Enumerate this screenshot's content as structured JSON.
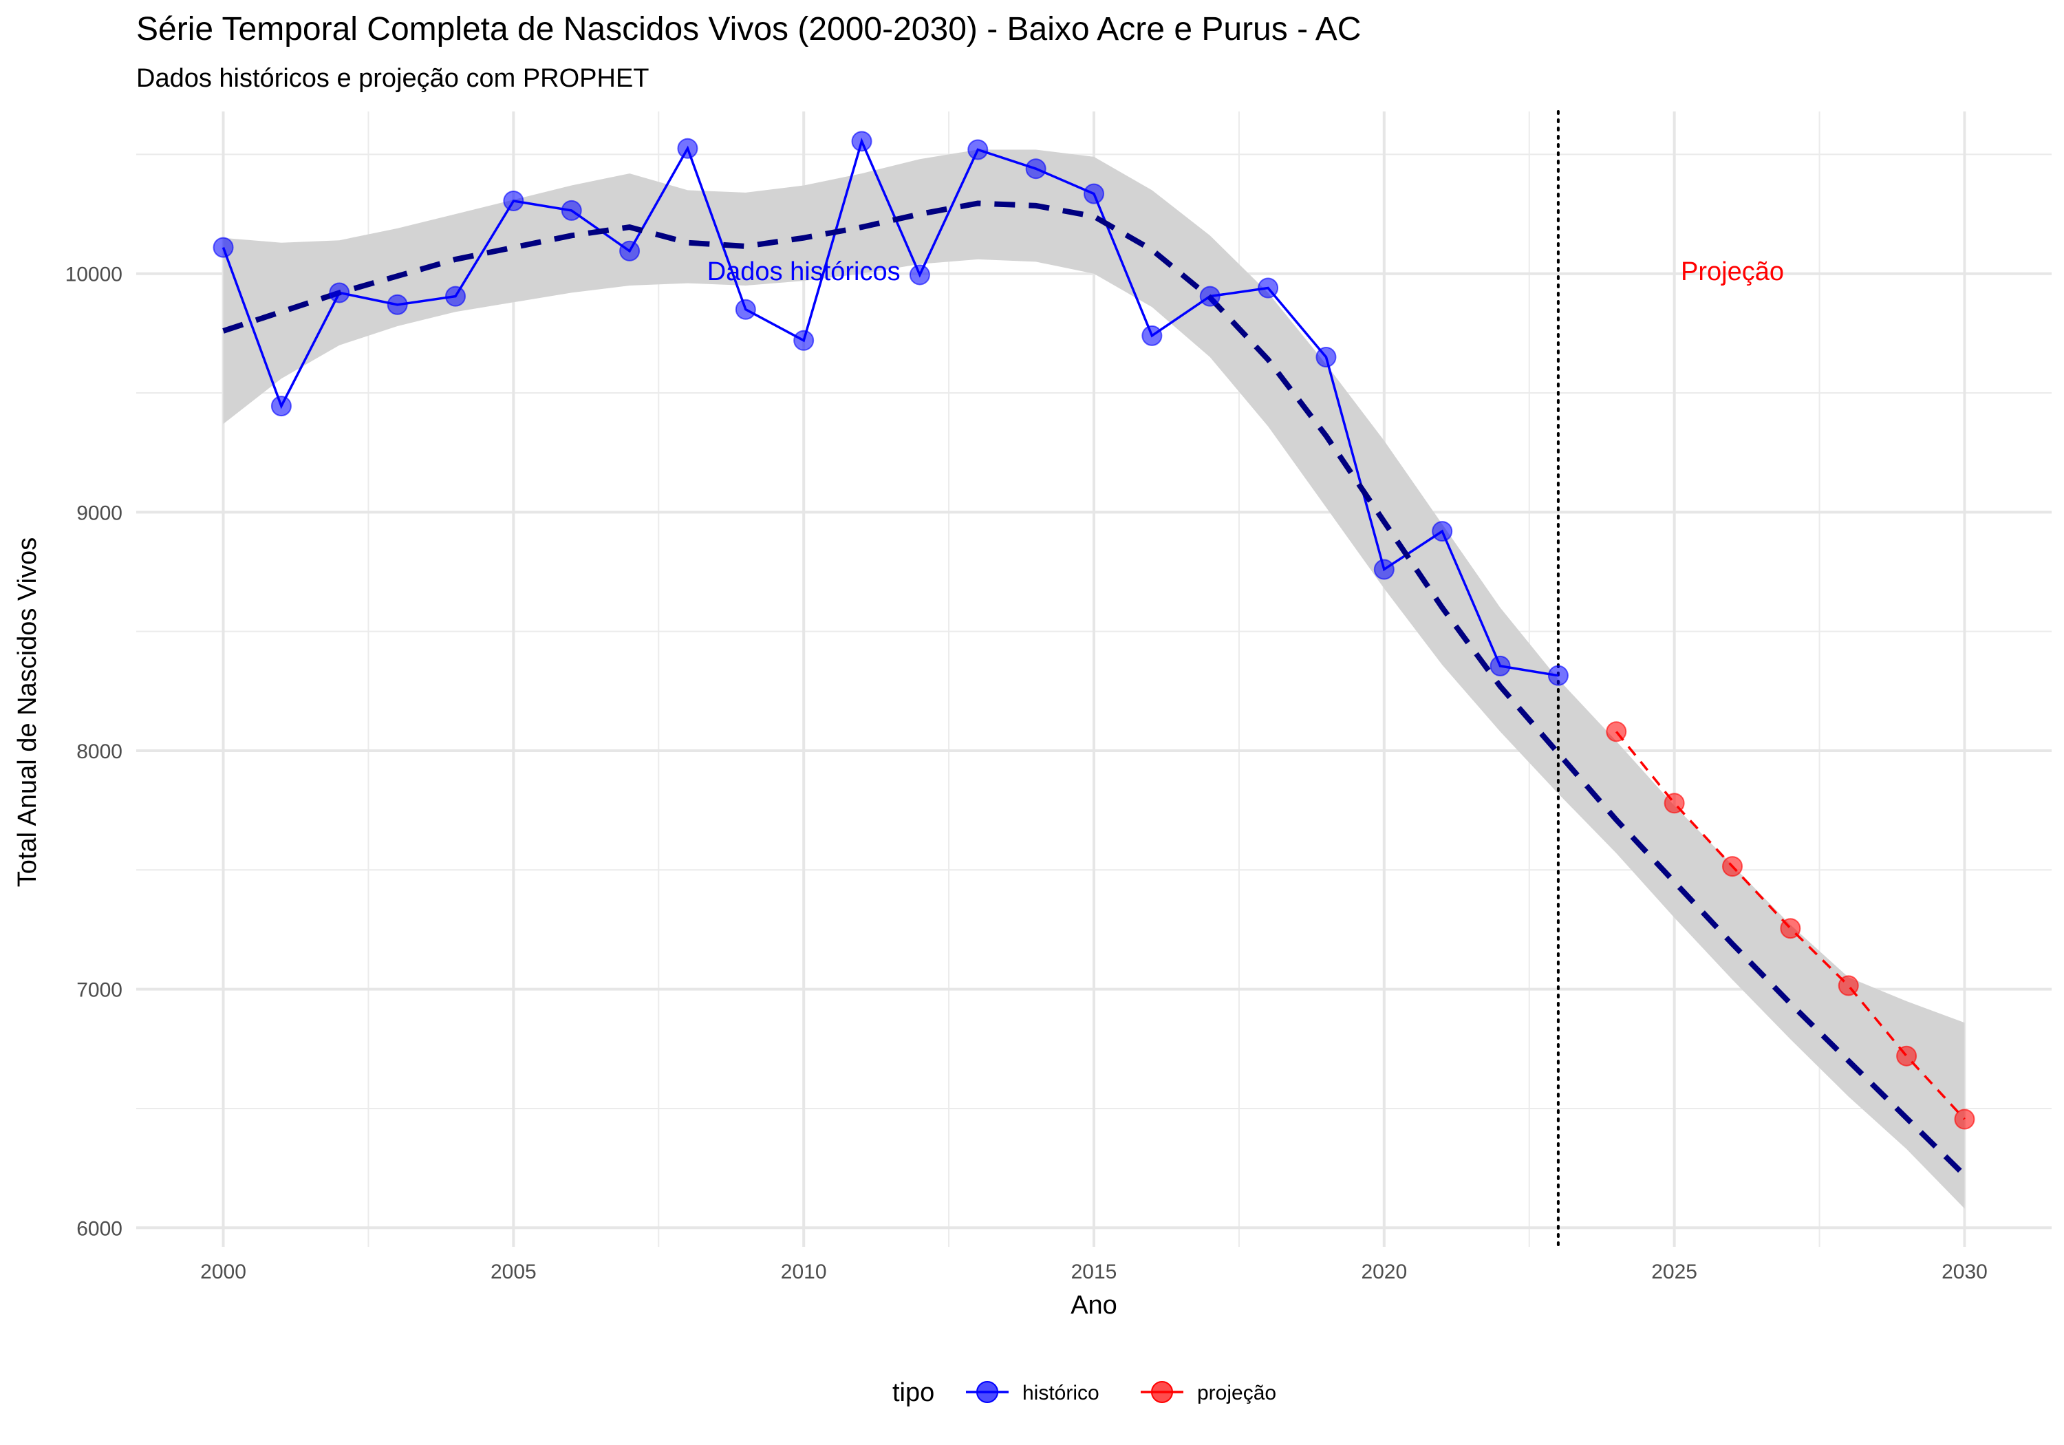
{
  "chart_data": {
    "type": "line",
    "title": "Série Temporal Completa de Nascidos Vivos (2000-2030) -  Baixo Acre e Purus - AC",
    "subtitle": "Dados históricos e projeção com PROPHET",
    "xlabel": "Ano",
    "ylabel": "Total Anual de Nascidos Vivos",
    "xlim": [
      1998.5,
      2031.5
    ],
    "ylim": [
      5920,
      10680
    ],
    "x_ticks": [
      2000,
      2005,
      2010,
      2015,
      2020,
      2025,
      2030
    ],
    "y_ticks": [
      6000,
      7000,
      8000,
      9000,
      10000
    ],
    "grid": true,
    "legend": {
      "title": "tipo",
      "position": "bottom",
      "entries": [
        {
          "label": "histórico",
          "color": "#0000ff"
        },
        {
          "label": "projeção",
          "color": "#ff0000"
        }
      ]
    },
    "series": [
      {
        "name": "histórico",
        "color": "#0000ff",
        "x": [
          2000,
          2001,
          2002,
          2003,
          2004,
          2005,
          2006,
          2007,
          2008,
          2009,
          2010,
          2011,
          2012,
          2013,
          2014,
          2015,
          2016,
          2017,
          2018,
          2019,
          2020,
          2021,
          2022,
          2023
        ],
        "values": [
          10110,
          9445,
          9920,
          9870,
          9905,
          10305,
          10265,
          10095,
          10525,
          9850,
          9720,
          10555,
          9995,
          10520,
          10440,
          10335,
          9740,
          9905,
          9940,
          9650,
          8760,
          8920,
          8355,
          8315
        ]
      },
      {
        "name": "projeção",
        "color": "#ff0000",
        "x": [
          2024,
          2025,
          2026,
          2027,
          2028,
          2029,
          2030
        ],
        "values": [
          8080,
          7780,
          7515,
          7255,
          7015,
          6720,
          6455
        ]
      }
    ],
    "smooth": {
      "color": "#000080",
      "band_color": "#d3d3d3",
      "x": [
        2000,
        2001,
        2002,
        2003,
        2004,
        2005,
        2006,
        2007,
        2008,
        2009,
        2010,
        2011,
        2012,
        2013,
        2014,
        2015,
        2016,
        2017,
        2018,
        2019,
        2020,
        2021,
        2022,
        2023,
        2024,
        2025,
        2026,
        2027,
        2028,
        2029,
        2030
      ],
      "fit": [
        9760,
        9840,
        9920,
        9990,
        10060,
        10110,
        10160,
        10195,
        10130,
        10115,
        10150,
        10195,
        10250,
        10295,
        10285,
        10240,
        10100,
        9900,
        9640,
        9320,
        8960,
        8600,
        8270,
        7990,
        7710,
        7450,
        7190,
        6940,
        6700,
        6460,
        6220
      ],
      "lower": [
        9370,
        9560,
        9700,
        9780,
        9840,
        9880,
        9920,
        9950,
        9960,
        9950,
        9970,
        10000,
        10040,
        10060,
        10050,
        10000,
        9860,
        9650,
        9360,
        9020,
        8680,
        8360,
        8080,
        7820,
        7570,
        7300,
        7040,
        6790,
        6550,
        6330,
        6080
      ],
      "upper": [
        10150,
        10130,
        10140,
        10190,
        10250,
        10310,
        10370,
        10420,
        10350,
        10340,
        10370,
        10420,
        10480,
        10520,
        10520,
        10490,
        10350,
        10160,
        9920,
        9620,
        9300,
        8950,
        8600,
        8300,
        8040,
        7770,
        7520,
        7270,
        7050,
        6950,
        6860
      ]
    },
    "vline": {
      "x": 2023
    },
    "annotations": [
      {
        "text": "Dados históricos",
        "x": 2010,
        "y": 10010,
        "color": "#0000ff"
      },
      {
        "text": "Projeção",
        "x": 2026,
        "y": 10010,
        "color": "#ff0000"
      }
    ]
  }
}
